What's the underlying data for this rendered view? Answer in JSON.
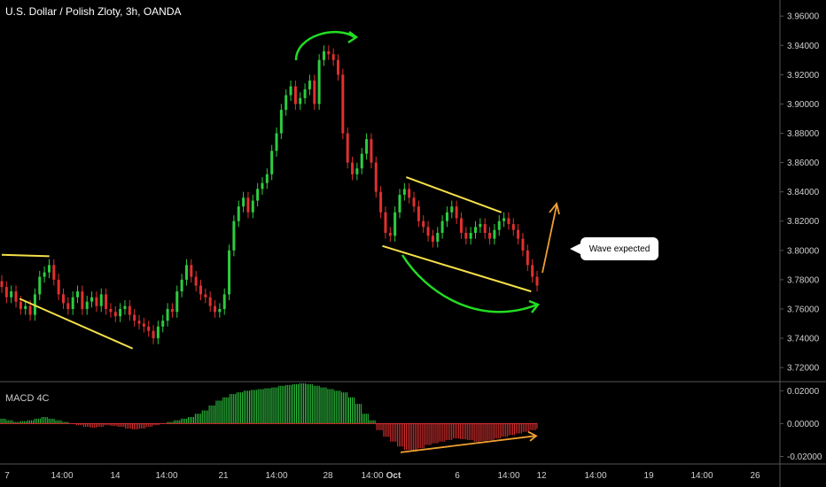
{
  "title": "U.S. Dollar / Polish Zloty, 3h, OANDA",
  "macd_label": "MACD 4C",
  "annotation": "Wave expected",
  "colors": {
    "up": "#2ecc40",
    "down": "#e03030",
    "yellow": "#f5e04a",
    "green": "#22dd22",
    "orange": "#f0a030",
    "grid": "#1a1a1a",
    "axis": "#555555"
  },
  "chart_data": [
    {
      "type": "candlestick",
      "y_tick_labels": [
        "3.96000",
        "3.94000",
        "3.92000",
        "3.90000",
        "3.88000",
        "3.86000",
        "3.84000",
        "3.82000",
        "3.80000",
        "3.78000",
        "3.76000",
        "3.74000",
        "3.72000"
      ],
      "y_tick_values": [
        3.96,
        3.94,
        3.92,
        3.9,
        3.88,
        3.86,
        3.84,
        3.82,
        3.8,
        3.78,
        3.76,
        3.74,
        3.72
      ],
      "ylim": [
        3.711,
        3.971
      ],
      "x_tick_labels": [
        "7",
        "14:00",
        "14",
        "14:00",
        "21",
        "14:00",
        "28",
        "14:00",
        "Oct",
        "6",
        "14:00",
        "12",
        "14:00",
        "19",
        "14:00",
        "26"
      ],
      "close_series": [
        3.775,
        3.768,
        3.772,
        3.765,
        3.76,
        3.762,
        3.756,
        3.77,
        3.782,
        3.785,
        3.79,
        3.78,
        3.77,
        3.764,
        3.76,
        3.768,
        3.772,
        3.76,
        3.765,
        3.768,
        3.762,
        3.77,
        3.76,
        3.758,
        3.755,
        3.76,
        3.762,
        3.756,
        3.752,
        3.75,
        3.748,
        3.745,
        3.74,
        3.748,
        3.752,
        3.76,
        3.758,
        3.772,
        3.78,
        3.79,
        3.782,
        3.776,
        3.77,
        3.768,
        3.762,
        3.758,
        3.76,
        3.77,
        3.8,
        3.82,
        3.83,
        3.836,
        3.826,
        3.834,
        3.842,
        3.846,
        3.852,
        3.868,
        3.88,
        3.896,
        3.906,
        3.912,
        3.9,
        3.904,
        3.91,
        3.916,
        3.9,
        3.93,
        3.936,
        3.934,
        3.93,
        3.92,
        3.88,
        3.86,
        3.852,
        3.856,
        3.866,
        3.876,
        3.86,
        3.84,
        3.826,
        3.812,
        3.81,
        3.826,
        3.838,
        3.842,
        3.836,
        3.83,
        3.82,
        3.816,
        3.81,
        3.806,
        3.812,
        3.82,
        3.826,
        3.83,
        3.822,
        3.812,
        3.808,
        3.812,
        3.816,
        3.818,
        3.812,
        3.808,
        3.814,
        3.82,
        3.822,
        3.818,
        3.814,
        3.808,
        3.8,
        3.79,
        3.782,
        3.776
      ],
      "channels": [
        {
          "color": "yellow",
          "points": [
            [
              0,
              3.797
            ],
            [
              8,
              3.796
            ]
          ]
        },
        {
          "color": "yellow",
          "points": [
            [
              3,
              3.767
            ],
            [
              22,
              3.733
            ]
          ]
        },
        {
          "color": "yellow",
          "points": [
            [
              68,
              3.85
            ],
            [
              84,
              3.826
            ]
          ]
        },
        {
          "color": "yellow",
          "points": [
            [
              64,
              3.803
            ],
            [
              89,
              3.772
            ]
          ]
        }
      ]
    },
    {
      "type": "bar",
      "name": "MACD 4C",
      "y_tick_labels": [
        "0.02000",
        "0.00000",
        "-0.02000"
      ],
      "y_tick_values": [
        0.02,
        0.0,
        -0.02
      ],
      "ylim": [
        -0.0235,
        0.025
      ],
      "values": [
        0.003,
        0.002,
        0.001,
        0.0015,
        0.002,
        0.003,
        0.004,
        0.003,
        0.002,
        0.001,
        0.0,
        -0.001,
        -0.002,
        -0.0025,
        -0.002,
        -0.001,
        -0.0015,
        -0.002,
        -0.003,
        -0.0035,
        -0.003,
        -0.002,
        -0.001,
        0.0,
        0.001,
        0.002,
        0.003,
        0.004,
        0.006,
        0.008,
        0.011,
        0.014,
        0.016,
        0.018,
        0.019,
        0.02,
        0.0205,
        0.021,
        0.0215,
        0.022,
        0.023,
        0.0235,
        0.024,
        0.0245,
        0.024,
        0.023,
        0.022,
        0.021,
        0.02,
        0.019,
        0.016,
        0.012,
        0.006,
        0.002,
        -0.004,
        -0.008,
        -0.011,
        -0.014,
        -0.016,
        -0.017,
        -0.015,
        -0.013,
        -0.012,
        -0.011,
        -0.01,
        -0.009,
        -0.0095,
        -0.01,
        -0.011,
        -0.0105,
        -0.01,
        -0.009,
        -0.008,
        -0.007,
        -0.006,
        -0.005,
        -0.004,
        -0.003
      ]
    }
  ]
}
